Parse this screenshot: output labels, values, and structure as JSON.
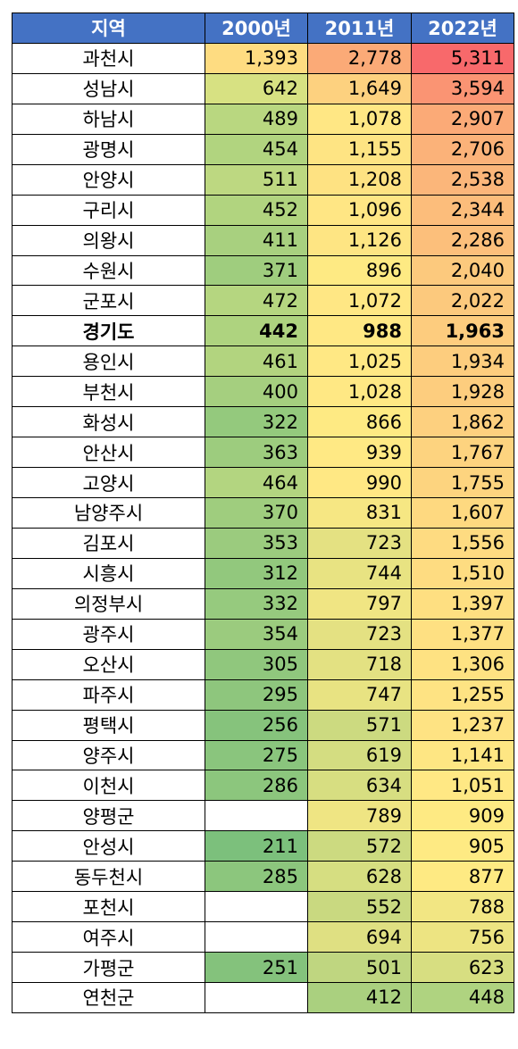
{
  "headers": [
    "지역",
    "2000년",
    "2011년",
    "2022년"
  ],
  "rows": [
    {
      "region": "과천시",
      "v2000": "1,393",
      "v2011": "2,778",
      "v2022": "5,311",
      "c2000": "#FEDC81",
      "c2011": "#FBAA77",
      "c2022": "#F8696B"
    },
    {
      "region": "성남시",
      "v2000": "642",
      "v2011": "1,649",
      "v2022": "3,594",
      "c2000": "#D7E182",
      "c2011": "#FDD17F",
      "c2022": "#FA9473"
    },
    {
      "region": "하남시",
      "v2000": "489",
      "v2011": "1,078",
      "v2022": "2,907",
      "c2000": "#B9D780",
      "c2011": "#FFE784",
      "c2022": "#FBAA77"
    },
    {
      "region": "광명시",
      "v2000": "454",
      "v2011": "1,155",
      "v2022": "2,706",
      "c2000": "#B1D47F",
      "c2011": "#FEE483",
      "c2022": "#FBB279"
    },
    {
      "region": "안양시",
      "v2000": "511",
      "v2011": "1,208",
      "v2022": "2,538",
      "c2000": "#BDD881",
      "c2011": "#FEE282",
      "c2022": "#FBB67A"
    },
    {
      "region": "구리시",
      "v2000": "452",
      "v2011": "1,096",
      "v2022": "2,344",
      "c2000": "#B1D47F",
      "c2011": "#FFE684",
      "c2022": "#FCBD7B"
    },
    {
      "region": "의왕시",
      "v2000": "411",
      "v2011": "1,126",
      "v2022": "2,286",
      "c2000": "#A8D07F",
      "c2011": "#FEE583",
      "c2022": "#FCBF7B"
    },
    {
      "region": "수원시",
      "v2000": "371",
      "v2011": "896",
      "v2022": "2,040",
      "c2000": "#9FCD7E",
      "c2011": "#FEEA83",
      "c2022": "#FCC97D"
    },
    {
      "region": "군포시",
      "v2000": "472",
      "v2011": "1,072",
      "v2022": "2,022",
      "c2000": "#B5D680",
      "c2011": "#FFE784",
      "c2022": "#FCC97D"
    },
    {
      "region": "경기도",
      "v2000": "442",
      "v2011": "988",
      "v2022": "1,963",
      "c2000": "#AED37F",
      "c2011": "#FFE884",
      "c2022": "#FDCC7E",
      "bold": true
    },
    {
      "region": "용인시",
      "v2000": "461",
      "v2011": "1,025",
      "v2022": "1,934",
      "c2000": "#B2D47F",
      "c2011": "#FFE884",
      "c2022": "#FDCD7E"
    },
    {
      "region": "부천시",
      "v2000": "400",
      "v2011": "1,028",
      "v2022": "1,928",
      "c2000": "#A5CF7F",
      "c2011": "#FFE884",
      "c2022": "#FDCD7E"
    },
    {
      "region": "화성시",
      "v2000": "322",
      "v2011": "866",
      "v2022": "1,862",
      "c2000": "#94C97D",
      "c2011": "#FEEA83",
      "c2022": "#FDD07F"
    },
    {
      "region": "안산시",
      "v2000": "363",
      "v2011": "939",
      "v2022": "1,767",
      "c2000": "#9DCC7E",
      "c2011": "#FFE984",
      "c2022": "#FDD37F"
    },
    {
      "region": "고양시",
      "v2000": "464",
      "v2011": "990",
      "v2022": "1,755",
      "c2000": "#B3D580",
      "c2011": "#FFE884",
      "c2022": "#FDD47F"
    },
    {
      "region": "남양주시",
      "v2000": "370",
      "v2011": "831",
      "v2022": "1,607",
      "c2000": "#9FCD7E",
      "c2011": "#F6E783",
      "c2022": "#FED980"
    },
    {
      "region": "김포시",
      "v2000": "353",
      "v2011": "723",
      "v2022": "1,556",
      "c2000": "#9BCB7E",
      "c2011": "#E4E182",
      "c2022": "#FEDB81"
    },
    {
      "region": "시흥시",
      "v2000": "312",
      "v2011": "744",
      "v2022": "1,510",
      "c2000": "#92C87D",
      "c2011": "#E8E382",
      "c2022": "#FEDC81"
    },
    {
      "region": "의정부시",
      "v2000": "332",
      "v2011": "797",
      "v2022": "1,397",
      "c2000": "#96CA7E",
      "c2011": "#F0E583",
      "c2022": "#FEDF81"
    },
    {
      "region": "광주시",
      "v2000": "354",
      "v2011": "723",
      "v2022": "1,377",
      "c2000": "#9BCB7E",
      "c2011": "#E4E182",
      "c2022": "#FEE082"
    },
    {
      "region": "오산시",
      "v2000": "305",
      "v2011": "718",
      "v2022": "1,306",
      "c2000": "#90C77D",
      "c2011": "#E3E182",
      "c2022": "#FEE282"
    },
    {
      "region": "파주시",
      "v2000": "295",
      "v2011": "747",
      "v2022": "1,255",
      "c2000": "#8EC67D",
      "c2011": "#E8E382",
      "c2022": "#FEE383"
    },
    {
      "region": "평택시",
      "v2000": "256",
      "v2011": "571",
      "v2022": "1,237",
      "c2000": "#86C37C",
      "c2011": "#CCDA80",
      "c2022": "#FEE383"
    },
    {
      "region": "양주시",
      "v2000": "275",
      "v2011": "619",
      "v2022": "1,141",
      "c2000": "#8AC57D",
      "c2011": "#D4DD81",
      "c2022": "#FEE683"
    },
    {
      "region": "이천시",
      "v2000": "286",
      "v2011": "634",
      "v2022": "1,051",
      "c2000": "#8CC67D",
      "c2011": "#D7DE81",
      "c2022": "#FFE884"
    },
    {
      "region": "양평군",
      "v2000": "",
      "v2011": "789",
      "v2022": "909",
      "c2000": "#FFFFFF",
      "c2011": "#EFE583",
      "c2022": "#FEEA83"
    },
    {
      "region": "안성시",
      "v2000": "211",
      "v2011": "572",
      "v2022": "905",
      "c2000": "#7CC07C",
      "c2011": "#CCDA80",
      "c2022": "#FEEA83"
    },
    {
      "region": "동두천시",
      "v2000": "285",
      "v2011": "628",
      "v2022": "877",
      "c2000": "#8CC67D",
      "c2011": "#D6DE81",
      "c2022": "#FEEA83"
    },
    {
      "region": "포천시",
      "v2000": "",
      "v2011": "552",
      "v2022": "788",
      "c2000": "#FFFFFF",
      "c2011": "#C9D980",
      "c2022": "#F2E683"
    },
    {
      "region": "여주시",
      "v2000": "",
      "v2011": "694",
      "v2022": "756",
      "c2000": "#FFFFFF",
      "c2011": "#DFE082",
      "c2022": "#EDE482"
    },
    {
      "region": "가평군",
      "v2000": "251",
      "v2011": "501",
      "v2022": "623",
      "c2000": "#84C27C",
      "c2011": "#BFD680",
      "c2022": "#D7DE81"
    },
    {
      "region": "연천군",
      "v2000": "",
      "v2011": "412",
      "v2022": "448",
      "c2000": "#FFFFFF",
      "c2011": "#AAD07F",
      "c2022": "#AFD380"
    }
  ]
}
